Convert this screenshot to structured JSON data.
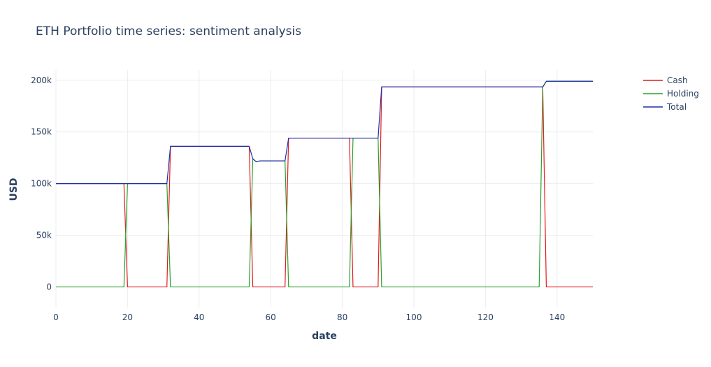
{
  "chart_data": {
    "type": "line",
    "title": "ETH Portfolio time series: sentiment analysis",
    "xlabel": "date",
    "ylabel": "USD",
    "xlim": [
      0,
      150
    ],
    "ylim": [
      -20000,
      210000
    ],
    "x_ticks": [
      0,
      20,
      40,
      60,
      80,
      100,
      120,
      140
    ],
    "x_tick_labels": [
      "0",
      "20",
      "40",
      "60",
      "80",
      "100",
      "120",
      "140"
    ],
    "y_ticks": [
      0,
      50000,
      100000,
      150000,
      200000
    ],
    "y_tick_labels": [
      "0",
      "50k",
      "100k",
      "150k",
      "200k"
    ],
    "grid": true,
    "legend_position": "top-right",
    "series": [
      {
        "name": "Cash",
        "color": "#e41a1c",
        "points": [
          [
            0,
            100000
          ],
          [
            19,
            100000
          ],
          [
            20,
            0
          ],
          [
            31,
            0
          ],
          [
            32,
            136000
          ],
          [
            54,
            136000
          ],
          [
            55,
            0
          ],
          [
            64,
            0
          ],
          [
            65,
            144000
          ],
          [
            82,
            144000
          ],
          [
            83,
            0
          ],
          [
            90,
            0
          ],
          [
            91,
            193500
          ],
          [
            135,
            193500
          ],
          [
            136,
            193500
          ],
          [
            137,
            0
          ],
          [
            150,
            0
          ]
        ]
      },
      {
        "name": "Holding",
        "color": "#2ca02c",
        "points": [
          [
            0,
            0
          ],
          [
            19,
            0
          ],
          [
            20,
            100000
          ],
          [
            31,
            100000
          ],
          [
            32,
            0
          ],
          [
            54,
            0
          ],
          [
            55,
            124000
          ],
          [
            56,
            121000
          ],
          [
            57,
            122000
          ],
          [
            64,
            122000
          ],
          [
            65,
            0
          ],
          [
            82,
            0
          ],
          [
            83,
            144000
          ],
          [
            90,
            144000
          ],
          [
            91,
            0
          ],
          [
            135,
            0
          ],
          [
            136,
            193500
          ],
          [
            137,
            199000
          ],
          [
            150,
            199000
          ]
        ]
      },
      {
        "name": "Total",
        "color": "#1f2fa8",
        "points": [
          [
            0,
            100000
          ],
          [
            19,
            100000
          ],
          [
            20,
            100000
          ],
          [
            31,
            100000
          ],
          [
            32,
            136000
          ],
          [
            54,
            136000
          ],
          [
            55,
            124000
          ],
          [
            56,
            121000
          ],
          [
            57,
            122000
          ],
          [
            64,
            122000
          ],
          [
            65,
            144000
          ],
          [
            82,
            144000
          ],
          [
            83,
            144000
          ],
          [
            90,
            144000
          ],
          [
            91,
            193500
          ],
          [
            135,
            193500
          ],
          [
            136,
            193500
          ],
          [
            137,
            199000
          ],
          [
            150,
            199000
          ]
        ]
      }
    ]
  }
}
